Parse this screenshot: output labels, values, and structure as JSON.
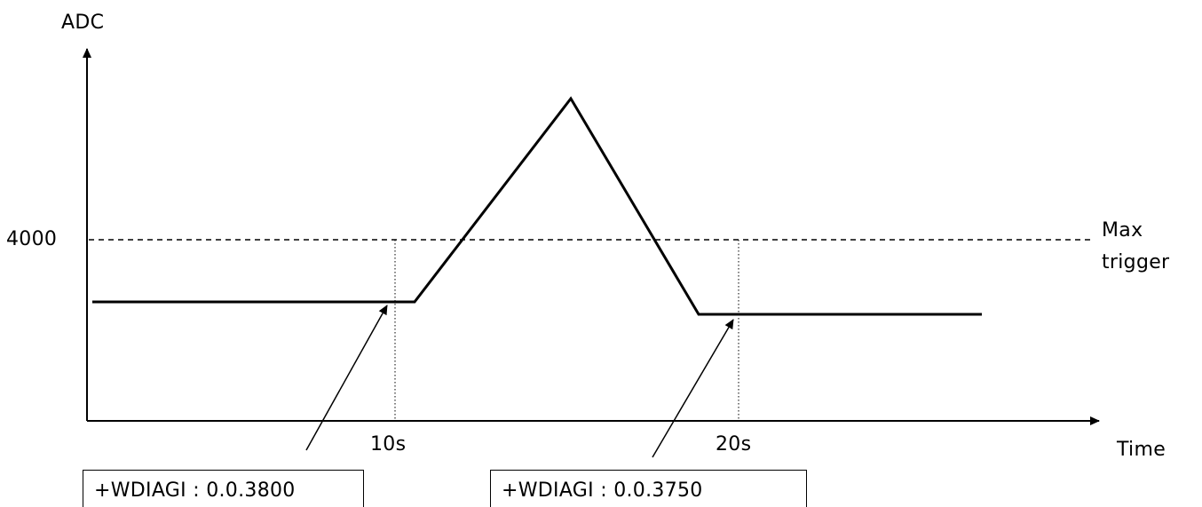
{
  "axes": {
    "y_label": "ADC",
    "x_label": "Time",
    "y_tick": "4000",
    "x_ticks": [
      "10s",
      "20s"
    ]
  },
  "threshold": {
    "label_line1": "Max",
    "label_line2": "trigger"
  },
  "annotations": [
    {
      "text": "+WDIAGI : 0.0.3800"
    },
    {
      "text": "+WDIAGI : 0.0.3750"
    }
  ],
  "colors": {
    "line": "#000000",
    "background": "#ffffff"
  }
}
